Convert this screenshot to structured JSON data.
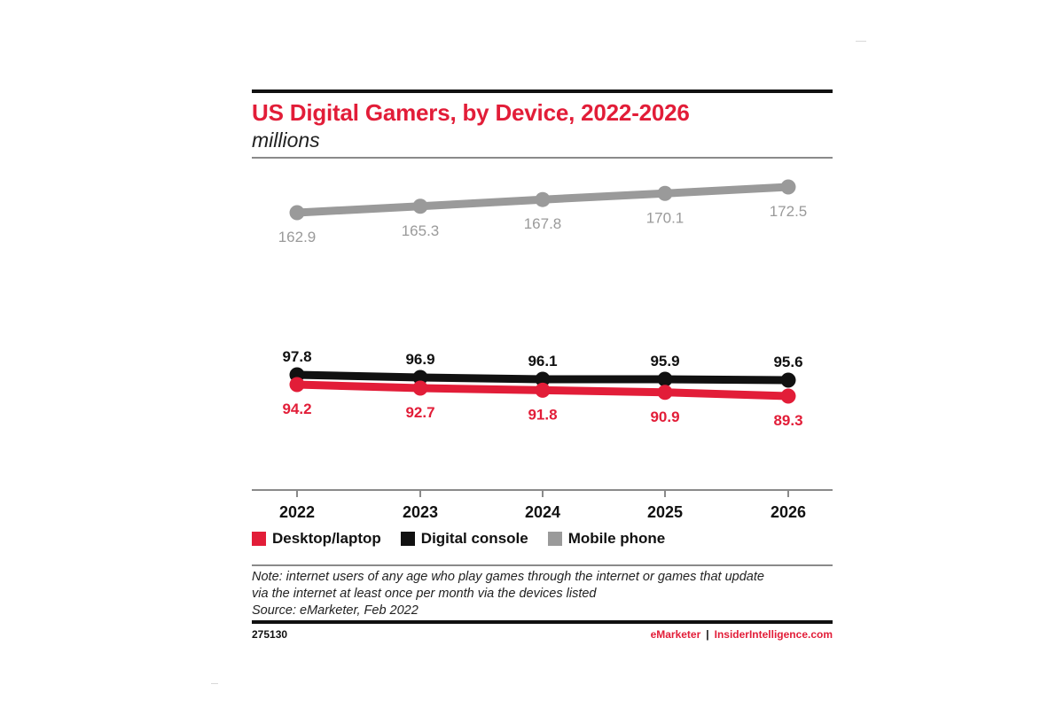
{
  "chart_data": {
    "type": "line",
    "title": "US Digital Gamers, by Device, 2022-2026",
    "subtitle": "millions",
    "categories": [
      "2022",
      "2023",
      "2024",
      "2025",
      "2026"
    ],
    "series": [
      {
        "name": "Mobile phone",
        "values": [
          162.9,
          165.3,
          167.8,
          170.1,
          172.5
        ],
        "color": "#9a9a9a",
        "labels": [
          "162.9",
          "165.3",
          "167.8",
          "170.1",
          "172.5"
        ]
      },
      {
        "name": "Digital console",
        "values": [
          97.8,
          96.9,
          96.1,
          95.9,
          95.6
        ],
        "color": "#111111",
        "labels": [
          "97.8",
          "96.9",
          "96.1",
          "95.9",
          "95.6"
        ]
      },
      {
        "name": "Desktop/laptop",
        "values": [
          94.2,
          92.7,
          91.8,
          90.9,
          89.3
        ],
        "color": "#e21d38",
        "labels": [
          "94.2",
          "92.7",
          "91.8",
          "90.9",
          "89.3"
        ]
      }
    ],
    "legend_order": [
      "Desktop/laptop",
      "Digital console",
      "Mobile phone"
    ],
    "grid": false,
    "legend_position": "bottom-left"
  },
  "legend": {
    "item1": "Desktop/laptop",
    "item2": "Digital console",
    "item3": "Mobile phone"
  },
  "note": {
    "line1": "Note: internet users of any age who play games through the internet or games that update",
    "line2": "via the internet at least once per month via the devices listed",
    "line3": "Source: eMarketer, Feb 2022"
  },
  "footer": {
    "chart_id": "275130",
    "brand": "eMarketer",
    "separator": "|",
    "site": "InsiderIntelligence.com"
  }
}
